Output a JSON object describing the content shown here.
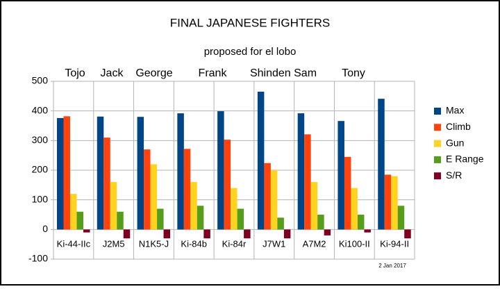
{
  "chart_data": {
    "type": "bar",
    "title": "FINAL JAPANESE FIGHTERS",
    "subtitle": "proposed for el lobo",
    "annotations": [
      "Tojo",
      "Jack",
      "George",
      "Frank",
      "Shinden Sam",
      "Tony"
    ],
    "date": "2 Jan 2017",
    "categories": [
      "Ki-44-IIc",
      "J2M5",
      "N1K5-J",
      "Ki-84b",
      "Ki-84r",
      "J7W1",
      "A7M2",
      "Ki100-II",
      "Ki-94-II"
    ],
    "series": [
      {
        "name": "Max",
        "color": "#004586",
        "values": [
          376,
          381,
          380,
          392,
          399,
          465,
          392,
          366,
          441
        ]
      },
      {
        "name": "Climb",
        "color": "#ff420e",
        "values": [
          382,
          310,
          270,
          272,
          303,
          224,
          321,
          245,
          185
        ]
      },
      {
        "name": "Gun",
        "color": "#ffd320",
        "values": [
          120,
          160,
          220,
          160,
          140,
          200,
          160,
          140,
          180
        ]
      },
      {
        "name": "E Range",
        "color": "#579d1c",
        "values": [
          60,
          60,
          70,
          80,
          70,
          40,
          50,
          50,
          80
        ]
      },
      {
        "name": "S/R",
        "color": "#7e0021",
        "values": [
          -10,
          -30,
          -30,
          -30,
          -30,
          -30,
          -20,
          -10,
          -30
        ]
      }
    ],
    "ylim": [
      -100,
      500
    ],
    "yticks": [
      -100,
      0,
      100,
      200,
      300,
      400,
      500
    ],
    "grid": true,
    "legend": "right"
  }
}
